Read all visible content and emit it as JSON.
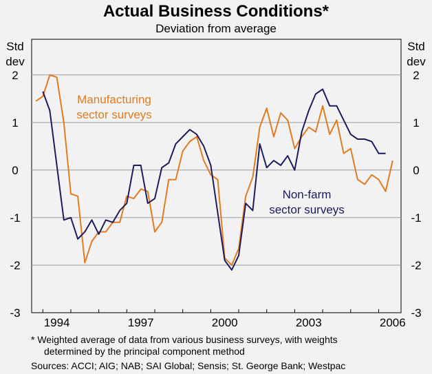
{
  "chart_data": {
    "type": "line",
    "title": "Actual Business Conditions*",
    "subtitle": "Deviation from average",
    "ylabel_left": [
      "Std",
      "dev"
    ],
    "ylabel_right": [
      "Std",
      "dev"
    ],
    "ylim": [
      -3,
      2.75
    ],
    "xlim": [
      1993.6,
      2006.8
    ],
    "yticks": [
      2,
      1,
      0,
      -1,
      -2,
      -3
    ],
    "xticks": [
      {
        "value": 1994,
        "label": "1994"
      },
      {
        "value": 1997,
        "label": "1997"
      },
      {
        "value": 2000,
        "label": "2000"
      },
      {
        "value": 2003,
        "label": "2003"
      },
      {
        "value": 2006,
        "label": "2006"
      }
    ],
    "series": [
      {
        "name": "Manufacturing sector surveys",
        "label_lines": [
          "Manufacturing",
          "sector surveys"
        ],
        "color": "#e07b1f",
        "x": [
          1993.75,
          1994.0,
          1994.25,
          1994.5,
          1994.75,
          1995.0,
          1995.25,
          1995.5,
          1995.75,
          1996.0,
          1996.25,
          1996.5,
          1996.75,
          1997.0,
          1997.25,
          1997.5,
          1997.75,
          1998.0,
          1998.25,
          1998.5,
          1998.75,
          1999.0,
          1999.25,
          1999.5,
          1999.75,
          2000.0,
          2000.25,
          2000.5,
          2000.75,
          2001.0,
          2001.25,
          2001.5,
          2001.75,
          2002.0,
          2002.25,
          2002.5,
          2002.75,
          2003.0,
          2003.25,
          2003.5,
          2003.75,
          2004.0,
          2004.25,
          2004.5,
          2004.75,
          2005.0,
          2005.25,
          2005.5,
          2005.75,
          2006.0,
          2006.25,
          2006.5,
          2006.75
        ],
        "values": [
          1.45,
          1.55,
          2.0,
          1.95,
          1.0,
          -0.5,
          -0.55,
          -1.95,
          -1.5,
          -1.3,
          -1.3,
          -1.1,
          -1.1,
          -0.55,
          -0.6,
          -0.4,
          -0.45,
          -1.3,
          -1.1,
          -0.2,
          -0.2,
          0.4,
          0.6,
          0.7,
          0.2,
          -0.1,
          -0.2,
          -1.85,
          -2.0,
          -1.65,
          -0.55,
          -0.15,
          0.9,
          1.3,
          0.7,
          1.2,
          1.05,
          0.45,
          0.7,
          0.9,
          0.8,
          1.35,
          0.75,
          1.05,
          0.35,
          0.45,
          -0.2,
          -0.3,
          -0.1,
          -0.2,
          -0.45,
          0.2,
          null
        ]
      },
      {
        "name": "Non-farm sector surveys",
        "label_lines": [
          "Non-farm",
          "sector surveys"
        ],
        "color": "#1b1b5e",
        "x": [
          1994.0,
          1994.25,
          1994.5,
          1994.75,
          1995.0,
          1995.25,
          1995.5,
          1995.75,
          1996.0,
          1996.25,
          1996.5,
          1996.75,
          1997.0,
          1997.25,
          1997.5,
          1997.75,
          1998.0,
          1998.25,
          1998.5,
          1998.75,
          1999.0,
          1999.25,
          1999.5,
          1999.75,
          2000.0,
          2000.25,
          2000.5,
          2000.75,
          2001.0,
          2001.25,
          2001.5,
          2001.75,
          2002.0,
          2002.25,
          2002.5,
          2002.75,
          2003.0,
          2003.25,
          2003.5,
          2003.75,
          2004.0,
          2004.25,
          2004.5,
          2004.75,
          2005.0,
          2005.25,
          2005.5,
          2005.75,
          2006.0,
          2006.25,
          2006.5
        ],
        "values": [
          1.65,
          1.25,
          0.1,
          -1.05,
          -1.0,
          -1.45,
          -1.3,
          -1.05,
          -1.35,
          -1.05,
          -1.1,
          -0.85,
          -0.7,
          0.1,
          0.1,
          -0.7,
          -0.6,
          0.05,
          0.15,
          0.55,
          0.7,
          0.85,
          0.75,
          0.5,
          0.1,
          -0.9,
          -1.9,
          -2.1,
          -1.8,
          -0.7,
          -0.85,
          0.55,
          0.05,
          0.2,
          0.1,
          0.3,
          0.0,
          0.8,
          1.25,
          1.6,
          1.7,
          1.35,
          1.35,
          1.05,
          0.75,
          0.65,
          0.65,
          0.6,
          0.35,
          0.35,
          null
        ]
      }
    ],
    "footnotes": [
      "*   Weighted average of data from various business surveys, with weights",
      "determined by the principal component method",
      "Sources: ACCI; AIG; NAB; SAI Global; Sensis; St. George Bank; Westpac"
    ]
  }
}
